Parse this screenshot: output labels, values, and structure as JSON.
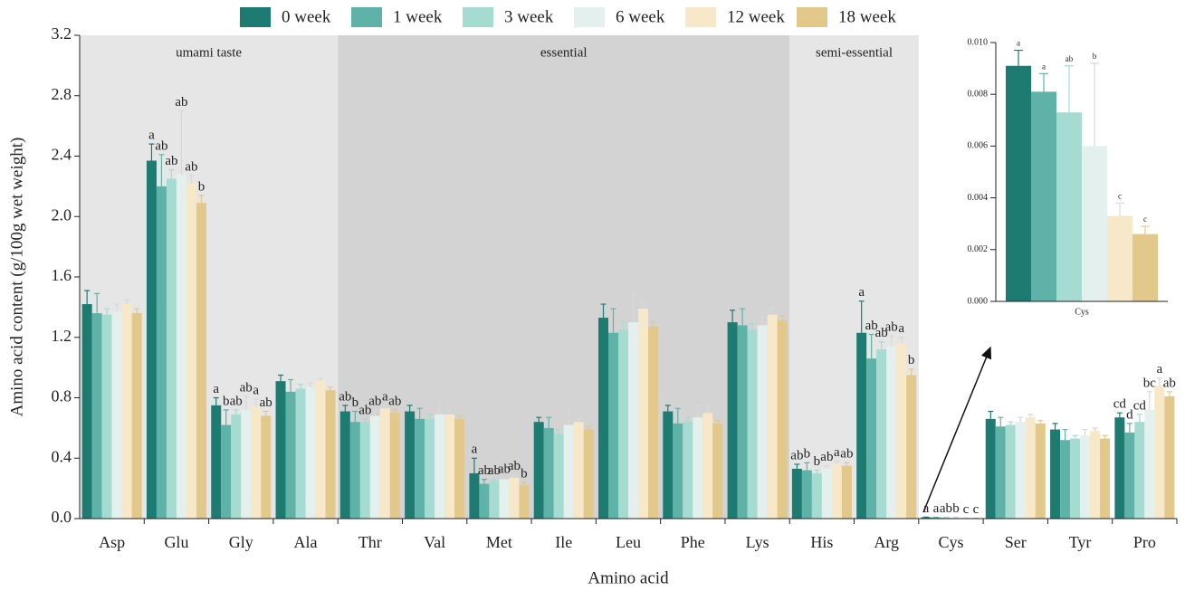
{
  "chart_data": [
    {
      "type": "bar",
      "x_label": "Amino acid",
      "y_label": "Amino acid content (g/100g wet weight)",
      "categories": [
        "Asp",
        "Glu",
        "Gly",
        "Ala",
        "Thr",
        "Val",
        "Met",
        "Ile",
        "Leu",
        "Phe",
        "Lys",
        "His",
        "Arg",
        "Cys",
        "Ser",
        "Tyr",
        "Pro"
      ],
      "ylim": [
        0,
        3.2
      ],
      "yticks": [
        {
          "value": 0,
          "label": "0.0"
        },
        0.4,
        0.8,
        1.2,
        1.6,
        {
          "value": 2,
          "label": "2.0"
        },
        2.4,
        2.8,
        3.2
      ],
      "legend": "top",
      "regions": [
        {
          "label": "umami taste",
          "categories": [
            "Asp",
            "Ala"
          ],
          "color": "#e6e6e6"
        },
        {
          "label": "essential",
          "categories": [
            "Thr",
            "Lys"
          ],
          "color": "#d3d3d3"
        },
        {
          "label": "semi-essential",
          "categories": [
            "His",
            "Arg"
          ],
          "color": "#e6e6e6"
        }
      ],
      "series": [
        {
          "name": "0 week",
          "color": "#1e7b72",
          "values": [
            1.42,
            2.37,
            0.75,
            0.91,
            0.71,
            0.71,
            0.3,
            0.64,
            1.33,
            0.71,
            1.3,
            0.33,
            1.23,
            0.0091,
            0.66,
            0.59,
            0.67
          ],
          "errors": [
            0.09,
            0.11,
            0.05,
            0.04,
            0.04,
            0.04,
            0.1,
            0.03,
            0.09,
            0.04,
            0.08,
            0.03,
            0.21,
            0.0006,
            0.05,
            0.04,
            0.03
          ],
          "letters": [
            null,
            "a",
            "a",
            null,
            "ab",
            null,
            "a",
            null,
            null,
            null,
            null,
            "ab",
            "a",
            "a",
            null,
            null,
            "cd"
          ]
        },
        {
          "name": "1 week",
          "color": "#5fb2a7",
          "values": [
            1.36,
            2.2,
            0.62,
            0.84,
            0.64,
            0.66,
            0.23,
            0.6,
            1.23,
            0.63,
            1.28,
            0.32,
            1.06,
            0.0081,
            0.61,
            0.52,
            0.57
          ],
          "errors": [
            0.13,
            0.21,
            0.1,
            0.08,
            0.07,
            0.07,
            0.03,
            0.07,
            0.16,
            0.1,
            0.11,
            0.05,
            0.16,
            0.0007,
            0.06,
            0.07,
            0.06
          ],
          "letters": [
            null,
            "ab",
            "b",
            null,
            "b",
            null,
            "ab",
            null,
            null,
            null,
            null,
            "b",
            "ab",
            "a",
            null,
            null,
            "d"
          ]
        },
        {
          "name": "3 week",
          "color": "#a6dbd2",
          "values": [
            1.35,
            2.25,
            0.69,
            0.86,
            0.64,
            0.66,
            0.25,
            0.56,
            1.25,
            0.64,
            1.25,
            0.3,
            1.12,
            0.0073,
            0.62,
            0.53,
            0.64
          ],
          "errors": [
            0.04,
            0.06,
            0.03,
            0.03,
            0.02,
            0.03,
            0.01,
            0.03,
            0.05,
            0.03,
            0.04,
            0.02,
            0.05,
            0.0018,
            0.02,
            0.02,
            0.05
          ],
          "letters": [
            null,
            "ab",
            "ab",
            null,
            "ab",
            null,
            "ab",
            null,
            null,
            null,
            null,
            "b",
            "ab",
            "ab",
            null,
            null,
            "cd"
          ]
        },
        {
          "name": "6 week",
          "color": "#e3f0ed",
          "values": [
            1.37,
            2.28,
            0.72,
            0.87,
            0.68,
            0.69,
            0.26,
            0.62,
            1.3,
            0.67,
            1.28,
            0.33,
            1.14,
            0.006,
            0.64,
            0.55,
            0.72
          ],
          "errors": [
            0.05,
            0.42,
            0.09,
            0.03,
            0.04,
            0.07,
            0.01,
            0.09,
            0.18,
            0.08,
            0.09,
            0.02,
            0.07,
            0.0032,
            0.03,
            0.04,
            0.12
          ],
          "letters": [
            null,
            "ab",
            "ab",
            null,
            "ab",
            null,
            "ab",
            null,
            null,
            null,
            null,
            "ab",
            "ab",
            "b",
            null,
            null,
            "bc"
          ]
        },
        {
          "name": "12 week",
          "color": "#f6e8c9",
          "values": [
            1.42,
            2.22,
            0.74,
            0.91,
            0.73,
            0.69,
            0.27,
            0.64,
            1.39,
            0.7,
            1.35,
            0.36,
            1.16,
            0.0033,
            0.67,
            0.58,
            0.88
          ],
          "errors": [
            0.03,
            0.05,
            0.05,
            0.02,
            0.02,
            0.03,
            0.02,
            0.02,
            0.05,
            0.04,
            0.04,
            0.02,
            0.04,
            0.0005,
            0.02,
            0.02,
            0.05
          ],
          "letters": [
            null,
            "ab",
            "a",
            null,
            "a",
            null,
            "ab",
            null,
            null,
            null,
            null,
            "a",
            "a",
            "c",
            null,
            null,
            "a"
          ]
        },
        {
          "name": "18 week",
          "color": "#e2c88a",
          "values": [
            1.36,
            2.09,
            0.68,
            0.85,
            0.7,
            0.66,
            0.22,
            0.59,
            1.27,
            0.63,
            1.31,
            0.35,
            0.95,
            0.0026,
            0.63,
            0.53,
            0.81
          ],
          "errors": [
            0.03,
            0.05,
            0.03,
            0.02,
            0.02,
            0.02,
            0.02,
            0.02,
            0.03,
            0.02,
            0.03,
            0.02,
            0.04,
            0.0003,
            0.02,
            0.02,
            0.03
          ],
          "letters": [
            null,
            "b",
            "ab",
            null,
            "ab",
            null,
            "b",
            null,
            null,
            null,
            null,
            "ab",
            "b",
            "c",
            null,
            null,
            "ab"
          ]
        }
      ]
    },
    {
      "type": "bar",
      "categories": [
        "Cys"
      ],
      "ylim": [
        0,
        0.01
      ],
      "yticks": [
        {
          "value": 0,
          "label": "0.000"
        },
        {
          "value": 0.002,
          "label": "0.002"
        },
        {
          "value": 0.004,
          "label": "0.004"
        },
        {
          "value": 0.006,
          "label": "0.006"
        },
        {
          "value": 0.008,
          "label": "0.008"
        },
        {
          "value": 0.01,
          "label": "0.010"
        }
      ],
      "series": [
        {
          "color": "#1e7b72",
          "values": [
            0.0091
          ],
          "errors": [
            0.0006
          ],
          "letters": [
            "a"
          ]
        },
        {
          "color": "#5fb2a7",
          "values": [
            0.0081
          ],
          "errors": [
            0.0007
          ],
          "letters": [
            "a"
          ]
        },
        {
          "color": "#a6dbd2",
          "values": [
            0.0073
          ],
          "errors": [
            0.0018
          ],
          "letters": [
            "ab"
          ]
        },
        {
          "color": "#e3f0ed",
          "values": [
            0.006
          ],
          "errors": [
            0.0032
          ],
          "letters": [
            "b"
          ]
        },
        {
          "color": "#f6e8c9",
          "values": [
            0.0033
          ],
          "errors": [
            0.0005
          ],
          "letters": [
            "c"
          ]
        },
        {
          "color": "#e2c88a",
          "values": [
            0.0026
          ],
          "errors": [
            0.0003
          ],
          "letters": [
            "c"
          ]
        }
      ]
    }
  ]
}
